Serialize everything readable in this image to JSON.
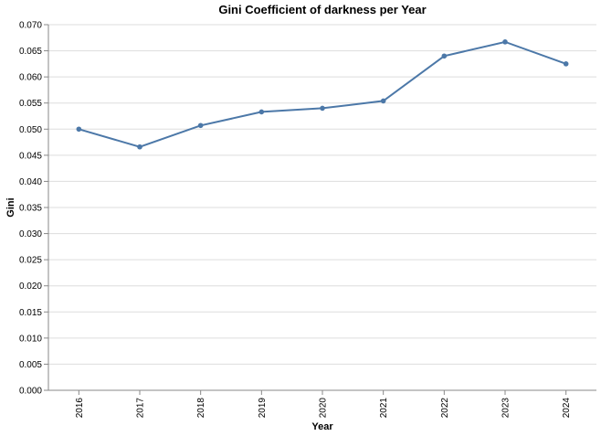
{
  "chart_data": {
    "type": "line",
    "title": "Gini Coefficient of darkness per Year",
    "xlabel": "Year",
    "ylabel": "Gini",
    "x": [
      "2016",
      "2017",
      "2018",
      "2019",
      "2020",
      "2021",
      "2022",
      "2023",
      "2024"
    ],
    "series": [
      {
        "values": [
          0.05,
          0.0466,
          0.0507,
          0.0533,
          0.054,
          0.0554,
          0.064,
          0.0667,
          0.0625
        ]
      }
    ],
    "ylim": [
      0,
      0.07
    ],
    "yticks": [
      "0.000",
      "0.005",
      "0.010",
      "0.015",
      "0.020",
      "0.025",
      "0.030",
      "0.035",
      "0.040",
      "0.045",
      "0.050",
      "0.055",
      "0.060",
      "0.065",
      "0.070"
    ],
    "grid": true,
    "line_color": "#4c78a8",
    "grid_color": "#dddddd",
    "axis_color": "#888888"
  }
}
